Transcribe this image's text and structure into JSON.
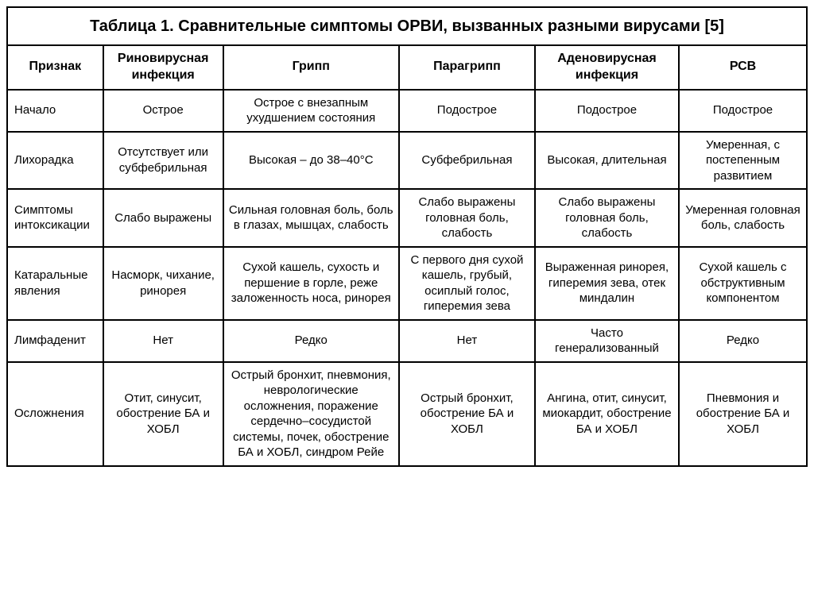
{
  "table": {
    "title": "Таблица 1. Сравнительные симптомы ОРВИ, вызванных разными вирусами [5]",
    "columns": [
      "Признак",
      "Риновирусная инфекция",
      "Грипп",
      "Парагрипп",
      "Аденовирусная инфекция",
      "РСВ"
    ],
    "col_widths_pct": [
      12,
      15,
      22,
      17,
      18,
      16
    ],
    "rows": [
      {
        "label": "Начало",
        "cells": [
          "Острое",
          "Острое с внезапным ухудшением состояния",
          "Подострое",
          "Подострое",
          "Подострое"
        ]
      },
      {
        "label": "Лихорадка",
        "cells": [
          "Отсутствует или субфебрильная",
          "Высокая – до 38–40°С",
          "Субфебрильная",
          "Высокая, длительная",
          "Умеренная, с постепенным развитием"
        ]
      },
      {
        "label": "Симптомы интоксикации",
        "cells": [
          "Слабо выражены",
          "Сильная головная боль, боль в глазах, мышцах, слабость",
          "Слабо выражены головная боль, слабость",
          "Слабо выражены головная боль, слабость",
          "Умеренная головная боль, слабость"
        ]
      },
      {
        "label": "Катаральные явления",
        "cells": [
          "Насморк, чихание, ринорея",
          "Сухой кашель, сухость и першение в горле, реже заложенность носа, ринорея",
          "С первого дня сухой кашель, грубый, осиплый голос, гиперемия зева",
          "Выраженная ринорея, гиперемия зева, отек миндалин",
          "Сухой кашель с обструктивным компонентом"
        ]
      },
      {
        "label": "Лимфаденит",
        "cells": [
          "Нет",
          "Редко",
          "Нет",
          "Часто генерализованный",
          "Редко"
        ]
      },
      {
        "label": "Осложнения",
        "cells": [
          "Отит, синусит, обострение БА и ХОБЛ",
          "Острый бронхит, пневмония, неврологические осложнения, поражение сердечно–сосудистой системы, почек, обострение БА и ХОБЛ, синдром Рейе",
          "Острый бронхит, обострение БА и ХОБЛ",
          "Ангина, отит, синусит, миокардит, обострение БА и ХОБЛ",
          "Пневмония и обострение БА и ХОБЛ"
        ]
      }
    ],
    "border_color": "#000000",
    "background_color": "#ffffff",
    "title_fontsize_pt": 20,
    "header_fontsize_pt": 16,
    "cell_fontsize_pt": 15
  }
}
